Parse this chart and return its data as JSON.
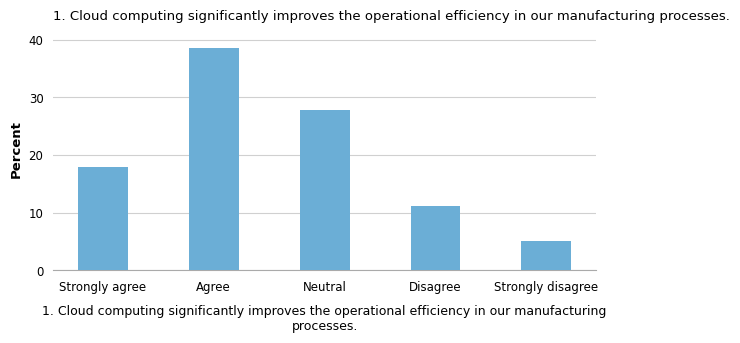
{
  "categories": [
    "Strongly agree",
    "Agree",
    "Neutral",
    "Disagree",
    "Strongly disagree"
  ],
  "values": [
    18.0,
    38.6,
    27.9,
    11.2,
    5.1
  ],
  "bar_color": "#6baed6",
  "title": "1. Cloud computing significantly improves the operational efficiency in our manufacturing processes.",
  "xlabel": "1. Cloud computing significantly improves the operational efficiency in our manufacturing\nprocesses.",
  "ylabel": "Percent",
  "ylim": [
    0,
    42
  ],
  "yticks": [
    0,
    10,
    20,
    30,
    40
  ],
  "title_fontsize": 9.5,
  "xlabel_fontsize": 9,
  "ylabel_fontsize": 9.5,
  "tick_fontsize": 8.5,
  "background_color": "#ffffff",
  "grid_color": "#d0d0d0",
  "bar_width": 0.45
}
